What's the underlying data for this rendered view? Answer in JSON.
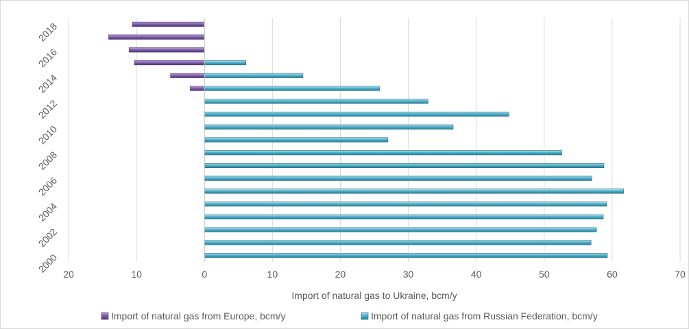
{
  "chart_data": {
    "type": "bar",
    "orientation": "horizontal",
    "categories": [
      "2000",
      "2001",
      "2002",
      "2003",
      "2004",
      "2005",
      "2006",
      "2007",
      "2008",
      "2009",
      "2010",
      "2011",
      "2012",
      "2013",
      "2014",
      "2015",
      "2016",
      "2017",
      "2018"
    ],
    "y_tick_labels": [
      "2000",
      "2002",
      "2004",
      "2006",
      "2008",
      "2010",
      "2012",
      "2014",
      "2016",
      "2018"
    ],
    "series": [
      {
        "name": "Import of natural gas from Europe, bcm/y",
        "color": "#7b5aa6",
        "values": [
          0,
          0,
          0,
          0,
          0,
          0,
          0,
          0,
          0,
          0,
          0,
          0,
          0,
          2.1,
          5.0,
          10.3,
          11.1,
          14.1,
          10.6
        ]
      },
      {
        "name": "Import of natural gas from Russian Federation, bcm/y",
        "color": "#4bacc6",
        "values": [
          59.3,
          56.9,
          57.7,
          58.7,
          59.2,
          61.7,
          57.0,
          58.8,
          52.6,
          27.0,
          36.6,
          44.8,
          32.9,
          25.8,
          14.5,
          6.1,
          0,
          0,
          0
        ]
      }
    ],
    "xlabel": "Import of natural gas to Ukraine, bcm/y",
    "x_tick_labels": [
      "20",
      "10",
      "0",
      "10",
      "20",
      "30",
      "40",
      "50",
      "60",
      "70"
    ],
    "xlim": [
      -20,
      70
    ],
    "grid": true,
    "legend_position": "bottom"
  }
}
